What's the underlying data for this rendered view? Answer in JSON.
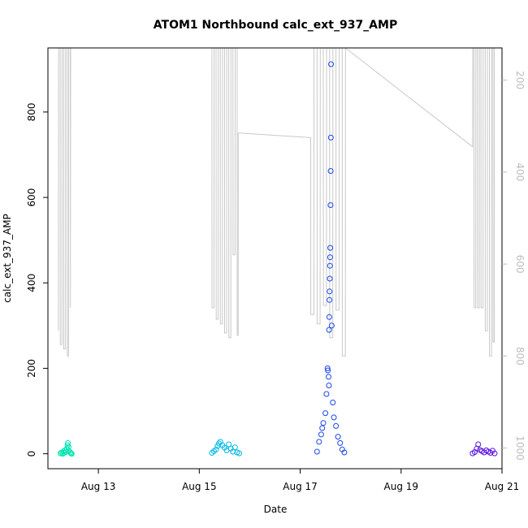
{
  "chart_data": {
    "type": "scatter",
    "title": "ATOM1 Northbound calc_ext_937_AMP",
    "xlabel": "Date",
    "ylabel": "calc_ext_937_AMP",
    "x_ticks": [
      "Aug 13",
      "Aug 15",
      "Aug 17",
      "Aug 19",
      "Aug 21"
    ],
    "y_ticks": [
      "0",
      "200",
      "400",
      "600",
      "800"
    ],
    "y2_ticks": [
      "200",
      "400",
      "600",
      "800",
      "1000"
    ],
    "xlim": [
      "2023-08-12T00:00",
      "2023-08-21T00:00"
    ],
    "ylim": [
      -35,
      950
    ],
    "y2lim": [
      1045,
      130
    ],
    "y2_reversed": true,
    "grid": false,
    "colors": {
      "axis": "#000000",
      "depth_line": "#c8c8c8",
      "secondary_axis": "#bdbdbd"
    },
    "series": [
      {
        "color": "#00e5b0",
        "points": [
          {
            "x": "2023-08-12T06:00",
            "y": 1
          },
          {
            "x": "2023-08-12T06:30",
            "y": 3
          },
          {
            "x": "2023-08-12T07:00",
            "y": 0
          },
          {
            "x": "2023-08-12T07:20",
            "y": 5
          },
          {
            "x": "2023-08-12T07:40",
            "y": 2
          },
          {
            "x": "2023-08-12T08:00",
            "y": 8
          },
          {
            "x": "2023-08-12T08:30",
            "y": 4
          },
          {
            "x": "2023-08-12T09:00",
            "y": 12
          },
          {
            "x": "2023-08-12T09:20",
            "y": 20
          },
          {
            "x": "2023-08-12T09:30",
            "y": 25
          },
          {
            "x": "2023-08-12T09:50",
            "y": 16
          },
          {
            "x": "2023-08-12T10:10",
            "y": 6
          },
          {
            "x": "2023-08-12T10:40",
            "y": 3
          },
          {
            "x": "2023-08-12T11:00",
            "y": 1
          },
          {
            "x": "2023-08-12T11:20",
            "y": 0
          }
        ]
      },
      {
        "color": "#00b8e6",
        "points": [
          {
            "x": "2023-08-15T06:00",
            "y": 2
          },
          {
            "x": "2023-08-15T07:00",
            "y": 6
          },
          {
            "x": "2023-08-15T08:00",
            "y": 10
          },
          {
            "x": "2023-08-15T08:40",
            "y": 18
          },
          {
            "x": "2023-08-15T09:20",
            "y": 24
          },
          {
            "x": "2023-08-15T10:00",
            "y": 28
          },
          {
            "x": "2023-08-15T11:00",
            "y": 20
          },
          {
            "x": "2023-08-15T12:00",
            "y": 14
          },
          {
            "x": "2023-08-15T13:00",
            "y": 8
          },
          {
            "x": "2023-08-15T14:00",
            "y": 22
          },
          {
            "x": "2023-08-15T15:00",
            "y": 12
          },
          {
            "x": "2023-08-15T16:00",
            "y": 5
          },
          {
            "x": "2023-08-15T17:00",
            "y": 15
          },
          {
            "x": "2023-08-15T18:00",
            "y": 3
          },
          {
            "x": "2023-08-15T19:00",
            "y": 1
          }
        ]
      },
      {
        "color": "#1a47e8",
        "points": [
          {
            "x": "2023-08-17T08:00",
            "y": 5
          },
          {
            "x": "2023-08-17T09:00",
            "y": 28
          },
          {
            "x": "2023-08-17T10:00",
            "y": 45
          },
          {
            "x": "2023-08-17T10:30",
            "y": 60
          },
          {
            "x": "2023-08-17T11:00",
            "y": 72
          },
          {
            "x": "2023-08-17T12:00",
            "y": 95
          },
          {
            "x": "2023-08-17T12:30",
            "y": 140
          },
          {
            "x": "2023-08-17T13:00",
            "y": 200
          },
          {
            "x": "2023-08-17T13:10",
            "y": 195
          },
          {
            "x": "2023-08-17T13:30",
            "y": 180
          },
          {
            "x": "2023-08-17T13:40",
            "y": 160
          },
          {
            "x": "2023-08-17T13:45",
            "y": 290
          },
          {
            "x": "2023-08-17T13:50",
            "y": 320
          },
          {
            "x": "2023-08-17T13:55",
            "y": 360
          },
          {
            "x": "2023-08-17T14:00",
            "y": 380
          },
          {
            "x": "2023-08-17T14:05",
            "y": 410
          },
          {
            "x": "2023-08-17T14:10",
            "y": 440
          },
          {
            "x": "2023-08-17T14:15",
            "y": 460
          },
          {
            "x": "2023-08-17T14:20",
            "y": 482
          },
          {
            "x": "2023-08-17T14:25",
            "y": 582
          },
          {
            "x": "2023-08-17T14:30",
            "y": 662
          },
          {
            "x": "2023-08-17T14:35",
            "y": 740
          },
          {
            "x": "2023-08-17T14:40",
            "y": 912
          },
          {
            "x": "2023-08-17T15:00",
            "y": 300
          },
          {
            "x": "2023-08-17T15:30",
            "y": 120
          },
          {
            "x": "2023-08-17T16:00",
            "y": 85
          },
          {
            "x": "2023-08-17T17:00",
            "y": 65
          },
          {
            "x": "2023-08-17T18:00",
            "y": 40
          },
          {
            "x": "2023-08-17T19:00",
            "y": 25
          },
          {
            "x": "2023-08-17T20:00",
            "y": 10
          },
          {
            "x": "2023-08-17T21:00",
            "y": 3
          }
        ]
      },
      {
        "color": "#5a12e0",
        "points": [
          {
            "x": "2023-08-20T10:00",
            "y": 1
          },
          {
            "x": "2023-08-20T11:00",
            "y": 4
          },
          {
            "x": "2023-08-20T12:00",
            "y": 12
          },
          {
            "x": "2023-08-20T12:40",
            "y": 22
          },
          {
            "x": "2023-08-20T13:30",
            "y": 9
          },
          {
            "x": "2023-08-20T14:30",
            "y": 6
          },
          {
            "x": "2023-08-20T15:30",
            "y": 3
          },
          {
            "x": "2023-08-20T16:30",
            "y": 8
          },
          {
            "x": "2023-08-20T17:30",
            "y": 5
          },
          {
            "x": "2023-08-20T18:30",
            "y": 2
          },
          {
            "x": "2023-08-20T19:30",
            "y": 7
          },
          {
            "x": "2023-08-20T20:30",
            "y": 1
          }
        ]
      }
    ],
    "depth_profile": {
      "axis": "right",
      "points": [
        {
          "x": "2023-08-12T05:00",
          "y2": 745
        },
        {
          "x": "2023-08-12T05:03",
          "y2": 130
        },
        {
          "x": "2023-08-12T05:50",
          "y2": 130
        },
        {
          "x": "2023-08-12T05:53",
          "y2": 775
        },
        {
          "x": "2023-08-12T06:40",
          "y2": 775
        },
        {
          "x": "2023-08-12T06:43",
          "y2": 130
        },
        {
          "x": "2023-08-12T07:30",
          "y2": 130
        },
        {
          "x": "2023-08-12T07:33",
          "y2": 785
        },
        {
          "x": "2023-08-12T08:20",
          "y2": 785
        },
        {
          "x": "2023-08-12T08:23",
          "y2": 130
        },
        {
          "x": "2023-08-12T09:10",
          "y2": 130
        },
        {
          "x": "2023-08-12T09:13",
          "y2": 800
        },
        {
          "x": "2023-08-12T09:50",
          "y2": 800
        },
        {
          "x": "2023-08-12T09:53",
          "y2": 130
        },
        {
          "x": "2023-08-12T10:40",
          "y2": 130
        },
        {
          "x": "2023-08-12T10:43",
          "y2": 695
        },
        {
          "x": "2023-08-12T10:50",
          "y2": 130
        },
        {
          "x": "2023-08-15T06:00",
          "y2": 130
        },
        {
          "x": "2023-08-15T06:03",
          "y2": 695
        },
        {
          "x": "2023-08-15T07:00",
          "y2": 695
        },
        {
          "x": "2023-08-15T07:03",
          "y2": 130
        },
        {
          "x": "2023-08-15T08:00",
          "y2": 130
        },
        {
          "x": "2023-08-15T08:03",
          "y2": 720
        },
        {
          "x": "2023-08-15T09:00",
          "y2": 720
        },
        {
          "x": "2023-08-15T09:03",
          "y2": 130
        },
        {
          "x": "2023-08-15T10:00",
          "y2": 130
        },
        {
          "x": "2023-08-15T10:03",
          "y2": 730
        },
        {
          "x": "2023-08-15T11:00",
          "y2": 730
        },
        {
          "x": "2023-08-15T11:03",
          "y2": 130
        },
        {
          "x": "2023-08-15T12:00",
          "y2": 130
        },
        {
          "x": "2023-08-15T12:03",
          "y2": 750
        },
        {
          "x": "2023-08-15T13:00",
          "y2": 750
        },
        {
          "x": "2023-08-15T13:03",
          "y2": 130
        },
        {
          "x": "2023-08-15T14:00",
          "y2": 130
        },
        {
          "x": "2023-08-15T14:03",
          "y2": 760
        },
        {
          "x": "2023-08-15T15:00",
          "y2": 760
        },
        {
          "x": "2023-08-15T15:03",
          "y2": 130
        },
        {
          "x": "2023-08-15T16:00",
          "y2": 130
        },
        {
          "x": "2023-08-15T16:03",
          "y2": 580
        },
        {
          "x": "2023-08-15T17:00",
          "y2": 580
        },
        {
          "x": "2023-08-15T17:03",
          "y2": 130
        },
        {
          "x": "2023-08-15T18:00",
          "y2": 130
        },
        {
          "x": "2023-08-15T18:03",
          "y2": 755
        },
        {
          "x": "2023-08-15T18:30",
          "y2": 755
        },
        {
          "x": "2023-08-15T18:33",
          "y2": 315
        },
        {
          "x": "2023-08-15T19:00",
          "y2": 315
        },
        {
          "x": "2023-08-17T05:00",
          "y2": 325
        },
        {
          "x": "2023-08-17T05:03",
          "y2": 710
        },
        {
          "x": "2023-08-17T06:30",
          "y2": 710
        },
        {
          "x": "2023-08-17T06:33",
          "y2": 130
        },
        {
          "x": "2023-08-17T08:00",
          "y2": 130
        },
        {
          "x": "2023-08-17T08:03",
          "y2": 730
        },
        {
          "x": "2023-08-17T09:30",
          "y2": 730
        },
        {
          "x": "2023-08-17T09:33",
          "y2": 130
        },
        {
          "x": "2023-08-17T11:00",
          "y2": 130
        },
        {
          "x": "2023-08-17T11:03",
          "y2": 690
        },
        {
          "x": "2023-08-17T12:30",
          "y2": 690
        },
        {
          "x": "2023-08-17T12:33",
          "y2": 130
        },
        {
          "x": "2023-08-17T14:00",
          "y2": 130
        },
        {
          "x": "2023-08-17T14:03",
          "y2": 760
        },
        {
          "x": "2023-08-17T15:30",
          "y2": 760
        },
        {
          "x": "2023-08-17T15:33",
          "y2": 130
        },
        {
          "x": "2023-08-17T17:00",
          "y2": 130
        },
        {
          "x": "2023-08-17T17:03",
          "y2": 700
        },
        {
          "x": "2023-08-17T18:30",
          "y2": 700
        },
        {
          "x": "2023-08-17T18:33",
          "y2": 130
        },
        {
          "x": "2023-08-17T20:00",
          "y2": 130
        },
        {
          "x": "2023-08-17T20:03",
          "y2": 800
        },
        {
          "x": "2023-08-17T21:30",
          "y2": 800
        },
        {
          "x": "2023-08-17T21:33",
          "y2": 130
        },
        {
          "x": "2023-08-20T10:00",
          "y2": 345
        },
        {
          "x": "2023-08-20T10:03",
          "y2": 130
        },
        {
          "x": "2023-08-20T10:40",
          "y2": 130
        },
        {
          "x": "2023-08-20T10:43",
          "y2": 695
        },
        {
          "x": "2023-08-20T11:30",
          "y2": 695
        },
        {
          "x": "2023-08-20T11:33",
          "y2": 130
        },
        {
          "x": "2023-08-20T12:20",
          "y2": 130
        },
        {
          "x": "2023-08-20T12:23",
          "y2": 695
        },
        {
          "x": "2023-08-20T13:10",
          "y2": 695
        },
        {
          "x": "2023-08-20T13:13",
          "y2": 130
        },
        {
          "x": "2023-08-20T14:00",
          "y2": 130
        },
        {
          "x": "2023-08-20T14:03",
          "y2": 695
        },
        {
          "x": "2023-08-20T15:00",
          "y2": 695
        },
        {
          "x": "2023-08-20T15:03",
          "y2": 130
        },
        {
          "x": "2023-08-20T16:00",
          "y2": 130
        },
        {
          "x": "2023-08-20T16:03",
          "y2": 745
        },
        {
          "x": "2023-08-20T17:00",
          "y2": 745
        },
        {
          "x": "2023-08-20T17:03",
          "y2": 130
        },
        {
          "x": "2023-08-20T18:00",
          "y2": 130
        },
        {
          "x": "2023-08-20T18:03",
          "y2": 800
        },
        {
          "x": "2023-08-20T19:00",
          "y2": 800
        },
        {
          "x": "2023-08-20T19:03",
          "y2": 130
        },
        {
          "x": "2023-08-20T19:40",
          "y2": 130
        },
        {
          "x": "2023-08-20T19:43",
          "y2": 770
        },
        {
          "x": "2023-08-20T20:20",
          "y2": 770
        },
        {
          "x": "2023-08-20T20:23",
          "y2": 130
        }
      ]
    }
  }
}
